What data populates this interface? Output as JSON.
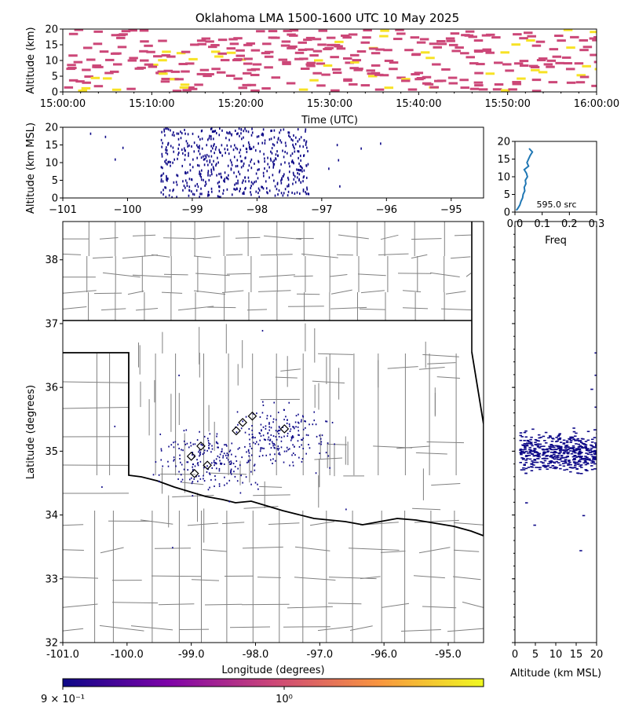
{
  "chart_data": {
    "type": "scatter",
    "title": "Oklahoma LMA 1500-1600 UTC 10 May 2025",
    "colorbar": {
      "colormap": "plasma",
      "scale": "log",
      "ticks": [
        {
          "value": 0.9,
          "label": "9 × 10⁻¹"
        },
        {
          "value": 1.0,
          "label": "10⁰"
        }
      ]
    },
    "panels": {
      "time_height": {
        "xlabel": "Time (UTC)",
        "ylabel": "Altitude (km)",
        "xlim": [
          "15:00:00",
          "16:00:00"
        ],
        "ylim": [
          0,
          20
        ],
        "xticks": [
          "15:00:00",
          "15:10:00",
          "15:20:00",
          "15:30:00",
          "15:40:00",
          "15:50:00",
          "16:00:00"
        ],
        "yticks": [
          0,
          5,
          10,
          15,
          20
        ],
        "colors": {
          "majority": "#cc4778",
          "minority": "#f7e225"
        }
      },
      "lon_height": {
        "ylabel": "Altitude (km MSL)",
        "xlim": [
          -101,
          -94.5
        ],
        "ylim": [
          0,
          20
        ],
        "xticks": [
          -101,
          -100,
          -99,
          -98,
          -97,
          -96,
          -95
        ],
        "yticks": [
          0,
          5,
          10,
          15,
          20
        ],
        "color": "#0d0887"
      },
      "histogram": {
        "xlabel": "Freq",
        "xlim": [
          0,
          0.3
        ],
        "ylim": [
          0,
          20
        ],
        "xticks": [
          "0.0",
          "0.1",
          "0.2",
          "0.3"
        ],
        "yticks": [
          0,
          5,
          10,
          15,
          20
        ],
        "annotation": "595.0 src",
        "line_color": "#1f77b4",
        "altitude": [
          0.5,
          1,
          2,
          3,
          4,
          5,
          6,
          7,
          8,
          9,
          10,
          11,
          12,
          13,
          14,
          15,
          16,
          17,
          18
        ],
        "freq": [
          0.005,
          0.01,
          0.018,
          0.022,
          0.028,
          0.03,
          0.036,
          0.034,
          0.04,
          0.038,
          0.046,
          0.042,
          0.034,
          0.05,
          0.044,
          0.05,
          0.056,
          0.064,
          0.052
        ]
      },
      "plan_view": {
        "xlabel": "Longitude (degrees)",
        "ylabel": "Latitude (degrees)",
        "xlim": [
          -101.0,
          -94.45
        ],
        "ylim": [
          32.0,
          38.6
        ],
        "xticks": [
          "-101.0",
          "-100.0",
          "-99.0",
          "-98.0",
          "-97.0",
          "-96.0",
          "-95.0"
        ],
        "yticks": [
          32,
          33,
          34,
          35,
          36,
          37,
          38
        ],
        "stations": [
          {
            "lon": -98.2,
            "lat": 35.45
          },
          {
            "lon": -98.05,
            "lat": 35.55
          },
          {
            "lon": -97.55,
            "lat": 35.35
          },
          {
            "lon": -98.3,
            "lat": 35.32
          },
          {
            "lon": -98.85,
            "lat": 35.08
          },
          {
            "lon": -99.0,
            "lat": 34.92
          },
          {
            "lon": -98.75,
            "lat": 34.78
          },
          {
            "lon": -98.95,
            "lat": 34.65
          }
        ],
        "color": "#0d0887"
      },
      "height_lat": {
        "xlabel": "Altitude (km MSL)",
        "xlim": [
          0,
          20
        ],
        "xticks": [
          0,
          5,
          10,
          15,
          20
        ],
        "color": "#0d0887"
      }
    }
  }
}
